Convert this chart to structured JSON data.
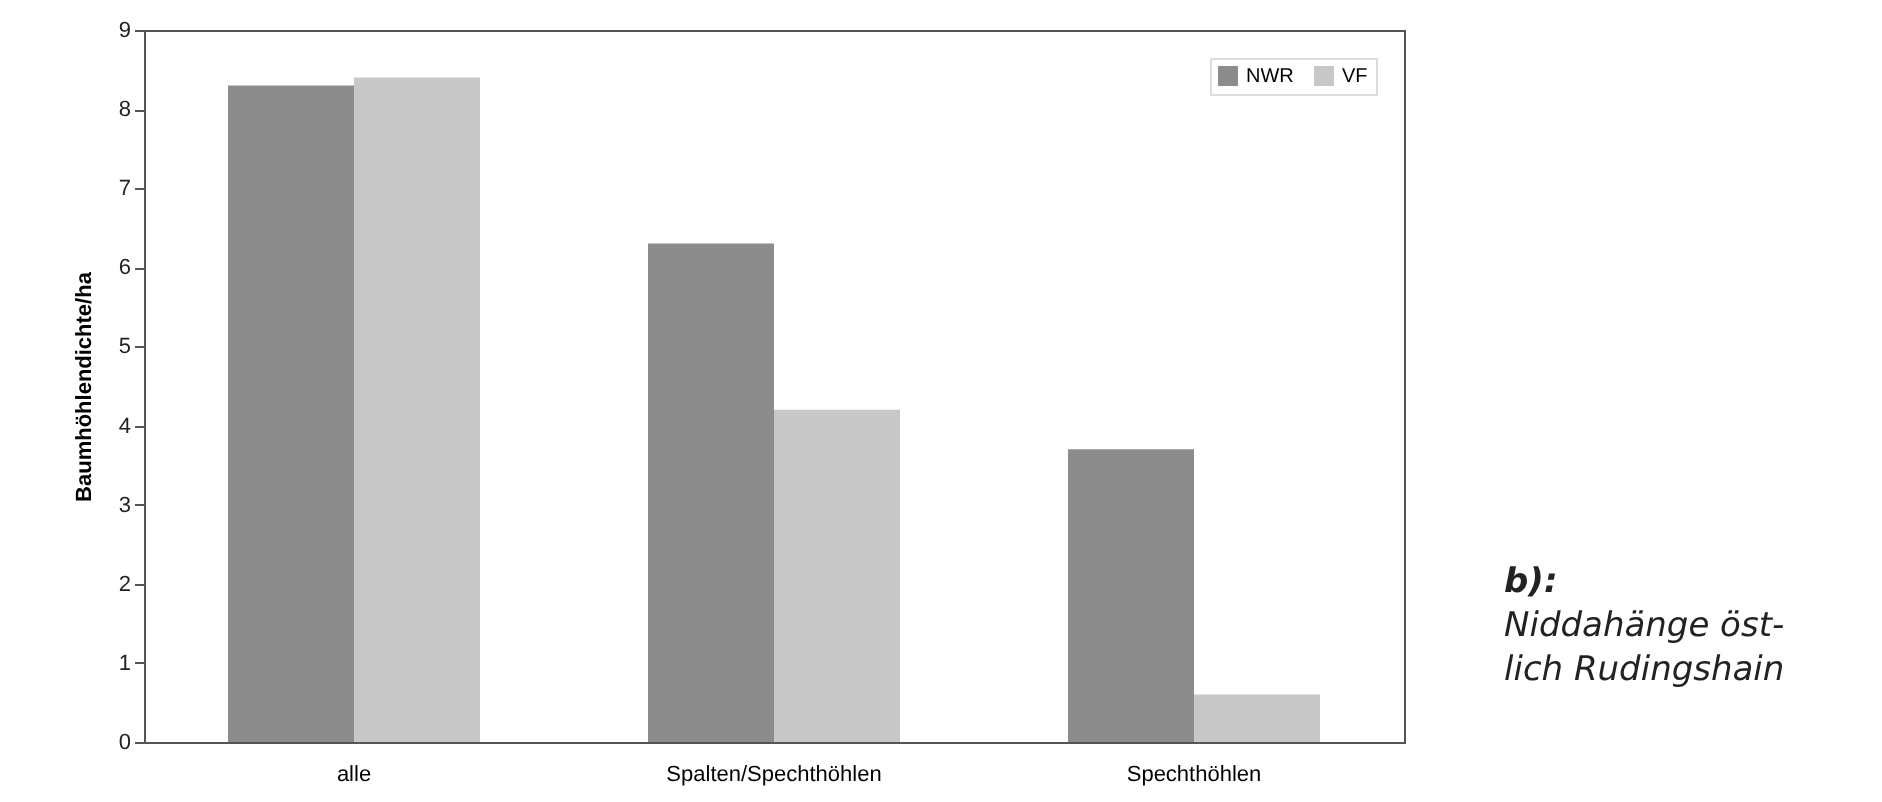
{
  "chart_data": {
    "type": "bar",
    "ylabel": "Baumhöhlendichte/ha",
    "categories": [
      "alle",
      "Spalten/Spechthöhlen",
      "Spechthöhlen"
    ],
    "series": [
      {
        "name": "NWR",
        "color": "#8c8c8c",
        "values": [
          8.3,
          6.3,
          3.7
        ]
      },
      {
        "name": "VF",
        "color": "#c8c8c8",
        "values": [
          8.4,
          4.2,
          0.6
        ]
      }
    ],
    "ylim": [
      0,
      9
    ],
    "yticks": [
      0,
      1,
      2,
      3,
      4,
      5,
      6,
      7,
      8,
      9
    ],
    "grid": false,
    "legend": "top right",
    "annotations": [
      "b):",
      "Niddahänge öst-",
      "lich Rudingshain"
    ]
  }
}
